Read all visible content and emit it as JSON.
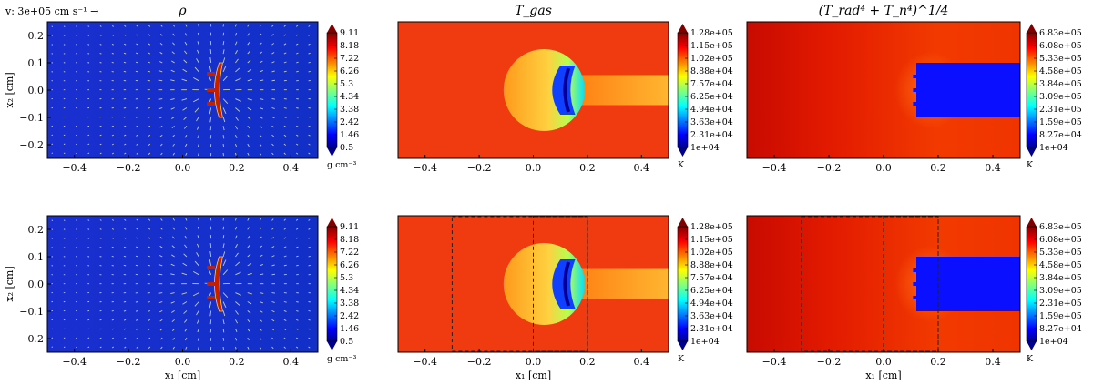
{
  "chart_data": [
    {
      "type": "heatmap",
      "title": "ρ",
      "ylabel": "x₂ [cm]",
      "xlabel": "",
      "xlim": [
        -0.5,
        0.5
      ],
      "ylim": [
        -0.25,
        0.25
      ],
      "xticks": [
        "−0.4",
        "−0.2",
        "0.0",
        "0.2",
        "0.4"
      ],
      "yticks": [
        "0.2",
        "0.1",
        "0.0",
        "−0.1",
        "−0.2"
      ],
      "colorbar": {
        "labels": [
          "9.11",
          "8.18",
          "7.22",
          "6.26",
          "5.3",
          "4.34",
          "3.38",
          "2.42",
          "1.46",
          "0.5"
        ],
        "unit": "g cm⁻³"
      },
      "vector_key": "v: 3e+05 cm s⁻¹ →",
      "field": "density"
    },
    {
      "type": "heatmap",
      "title": "T_gas",
      "xlabel": "",
      "xlim": [
        -0.5,
        0.5
      ],
      "ylim": [
        -0.25,
        0.25
      ],
      "xticks": [
        "−0.4",
        "−0.2",
        "0.0",
        "0.2",
        "0.4"
      ],
      "colorbar": {
        "labels": [
          "1.28e+05",
          "1.15e+05",
          "1.02e+05",
          "8.88e+04",
          "7.57e+04",
          "6.25e+04",
          "4.94e+04",
          "3.63e+04",
          "2.31e+04",
          "1e+04"
        ],
        "unit": "K"
      },
      "field": "gas-temperature"
    },
    {
      "type": "heatmap",
      "title": "(T_rad⁴ + T_n⁴)^1/4",
      "xlabel": "",
      "xlim": [
        -0.5,
        0.5
      ],
      "ylim": [
        -0.25,
        0.25
      ],
      "xticks": [
        "−0.4",
        "−0.2",
        "0.0",
        "0.2",
        "0.4"
      ],
      "colorbar": {
        "labels": [
          "6.83e+05",
          "6.08e+05",
          "5.33e+05",
          "4.58e+05",
          "3.84e+05",
          "3.09e+05",
          "2.31e+05",
          "1.59e+05",
          "8.27e+04",
          "1e+04"
        ],
        "unit": "K"
      },
      "field": "radiation-temperature"
    },
    {
      "type": "heatmap",
      "title": "",
      "ylabel": "x₂ [cm]",
      "xlabel": "x₁ [cm]",
      "xlim": [
        -0.5,
        0.5
      ],
      "ylim": [
        -0.25,
        0.25
      ],
      "xticks": [
        "−0.4",
        "−0.2",
        "0.0",
        "0.2",
        "0.4"
      ],
      "yticks": [
        "0.2",
        "0.1",
        "0.0",
        "−0.1",
        "−0.2"
      ],
      "colorbar": {
        "labels": [
          "9.11",
          "8.18",
          "7.22",
          "6.26",
          "5.3",
          "4.34",
          "3.38",
          "2.42",
          "1.46",
          "0.5"
        ],
        "unit": "g cm⁻³"
      },
      "field": "density"
    },
    {
      "type": "heatmap",
      "title": "",
      "xlabel": "x₁ [cm]",
      "xlim": [
        -0.5,
        0.5
      ],
      "ylim": [
        -0.25,
        0.25
      ],
      "xticks": [
        "−0.4",
        "−0.2",
        "0.0",
        "0.2",
        "0.4"
      ],
      "colorbar": {
        "labels": [
          "1.28e+05",
          "1.15e+05",
          "1.02e+05",
          "8.88e+04",
          "7.57e+04",
          "6.25e+04",
          "4.94e+04",
          "3.63e+04",
          "2.31e+04",
          "1e+04"
        ],
        "unit": "K"
      },
      "boxes": [
        [
          -0.3,
          0.2
        ],
        [
          0.0,
          0.2
        ]
      ],
      "field": "gas-temperature"
    },
    {
      "type": "heatmap",
      "title": "",
      "xlabel": "x₁ [cm]",
      "xlim": [
        -0.5,
        0.5
      ],
      "ylim": [
        -0.25,
        0.25
      ],
      "xticks": [
        "−0.4",
        "−0.2",
        "0.0",
        "0.2",
        "0.4"
      ],
      "colorbar": {
        "labels": [
          "6.83e+05",
          "6.08e+05",
          "5.33e+05",
          "4.58e+05",
          "3.84e+05",
          "3.09e+05",
          "2.31e+05",
          "1.59e+05",
          "8.27e+04",
          "1e+04"
        ],
        "unit": "K"
      },
      "boxes": [
        [
          -0.3,
          0.2
        ],
        [
          0.0,
          0.2
        ]
      ],
      "field": "radiation-temperature"
    }
  ]
}
